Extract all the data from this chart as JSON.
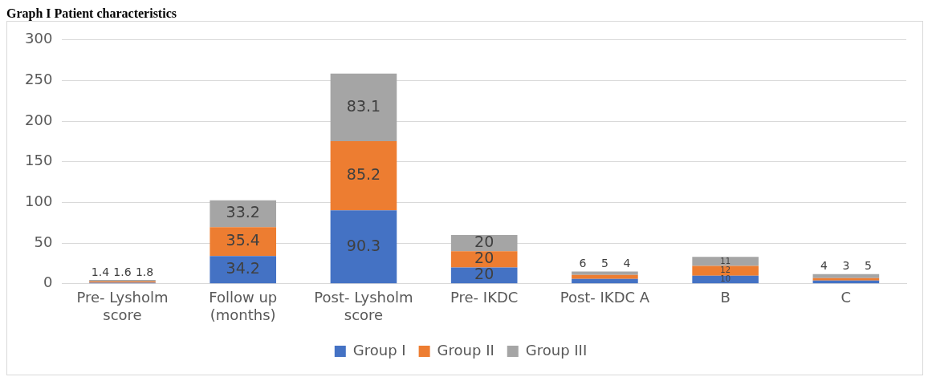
{
  "chart_data": {
    "type": "bar",
    "title": "Graph I Patient characteristics",
    "categories": [
      "Pre- Lysholm score",
      "Follow up (months)",
      "Post- Lysholm score",
      "Pre- IKDC",
      "Post- IKDC A",
      "B",
      "C"
    ],
    "stacked": true,
    "series": [
      {
        "name": "Group I",
        "color": "#4472c4",
        "values": [
          1.4,
          34.2,
          90.3,
          20,
          6,
          10,
          4
        ]
      },
      {
        "name": "Group II",
        "color": "#ed7d31",
        "values": [
          1.6,
          35.4,
          85.2,
          20,
          5,
          12,
          3
        ]
      },
      {
        "name": "Group III",
        "color": "#a5a5a5",
        "values": [
          1.8,
          33.2,
          83.1,
          20,
          4,
          11,
          5
        ]
      }
    ],
    "ylim": [
      0,
      300
    ],
    "yticks": [
      0,
      50,
      100,
      150,
      200,
      250,
      300
    ],
    "grid": "y",
    "legend": "bottom",
    "data_labels": true
  }
}
